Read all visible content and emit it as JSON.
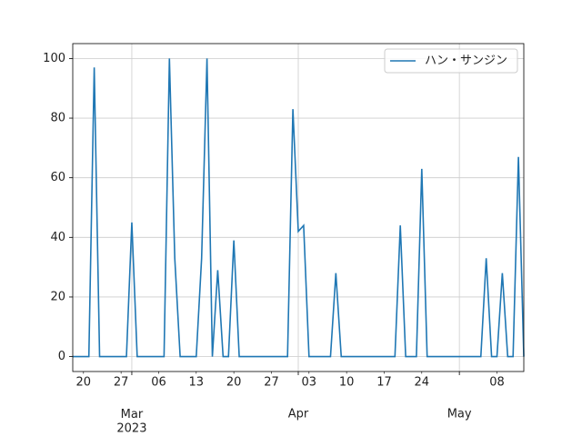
{
  "chart_data": {
    "type": "line",
    "x": [
      "2023-02-18",
      "2023-02-19",
      "2023-02-20",
      "2023-02-21",
      "2023-02-22",
      "2023-02-23",
      "2023-02-24",
      "2023-02-25",
      "2023-02-26",
      "2023-02-27",
      "2023-02-28",
      "2023-03-01",
      "2023-03-02",
      "2023-03-03",
      "2023-03-04",
      "2023-03-05",
      "2023-03-06",
      "2023-03-07",
      "2023-03-08",
      "2023-03-09",
      "2023-03-10",
      "2023-03-11",
      "2023-03-12",
      "2023-03-13",
      "2023-03-14",
      "2023-03-15",
      "2023-03-16",
      "2023-03-17",
      "2023-03-18",
      "2023-03-19",
      "2023-03-20",
      "2023-03-21",
      "2023-03-22",
      "2023-03-23",
      "2023-03-24",
      "2023-03-25",
      "2023-03-26",
      "2023-03-27",
      "2023-03-28",
      "2023-03-29",
      "2023-03-30",
      "2023-03-31",
      "2023-04-01",
      "2023-04-02",
      "2023-04-03",
      "2023-04-04",
      "2023-04-05",
      "2023-04-06",
      "2023-04-07",
      "2023-04-08",
      "2023-04-09",
      "2023-04-10",
      "2023-04-11",
      "2023-04-12",
      "2023-04-13",
      "2023-04-14",
      "2023-04-15",
      "2023-04-16",
      "2023-04-17",
      "2023-04-18",
      "2023-04-19",
      "2023-04-20",
      "2023-04-21",
      "2023-04-22",
      "2023-04-23",
      "2023-04-24",
      "2023-04-25",
      "2023-04-26",
      "2023-04-27",
      "2023-04-28",
      "2023-04-29",
      "2023-04-30",
      "2023-05-01",
      "2023-05-02",
      "2023-05-03",
      "2023-05-04",
      "2023-05-05",
      "2023-05-06",
      "2023-05-07",
      "2023-05-08",
      "2023-05-09",
      "2023-05-10",
      "2023-05-11",
      "2023-05-12",
      "2023-05-13"
    ],
    "series": [
      {
        "name": "ハン・サンジン",
        "color": "#1f77b4",
        "values": [
          0,
          0,
          0,
          0,
          97,
          0,
          0,
          0,
          0,
          0,
          0,
          45,
          0,
          0,
          0,
          0,
          0,
          0,
          100,
          33,
          0,
          0,
          0,
          0,
          33,
          100,
          0,
          29,
          0,
          0,
          39,
          0,
          0,
          0,
          0,
          0,
          0,
          0,
          0,
          0,
          0,
          83,
          42,
          44,
          0,
          0,
          0,
          0,
          0,
          28,
          0,
          0,
          0,
          0,
          0,
          0,
          0,
          0,
          0,
          0,
          0,
          44,
          0,
          0,
          0,
          63,
          0,
          0,
          0,
          0,
          0,
          0,
          0,
          0,
          0,
          0,
          0,
          33,
          0,
          0,
          28,
          0,
          0,
          67,
          0
        ]
      }
    ],
    "xlim": [
      "2023-02-18",
      "2023-05-13"
    ],
    "xticks": [
      {
        "value": "2023-03-01",
        "label": "Mar\n2023"
      },
      {
        "value": "2023-04-01",
        "label": "Apr"
      },
      {
        "value": "2023-05-01",
        "label": "May"
      }
    ],
    "xticks_minor": [
      {
        "value": "2023-02-20",
        "label": "20"
      },
      {
        "value": "2023-02-27",
        "label": "27"
      },
      {
        "value": "2023-03-06",
        "label": "06"
      },
      {
        "value": "2023-03-13",
        "label": "13"
      },
      {
        "value": "2023-03-20",
        "label": "20"
      },
      {
        "value": "2023-03-27",
        "label": "27"
      },
      {
        "value": "2023-04-03",
        "label": "03"
      },
      {
        "value": "2023-04-10",
        "label": "10"
      },
      {
        "value": "2023-04-17",
        "label": "17"
      },
      {
        "value": "2023-04-24",
        "label": "24"
      },
      {
        "value": "2023-05-08",
        "label": "08"
      }
    ],
    "ylim": [
      -5,
      105
    ],
    "yticks": [
      0,
      20,
      40,
      60,
      80,
      100
    ],
    "grid": true,
    "legend": "upper right"
  }
}
